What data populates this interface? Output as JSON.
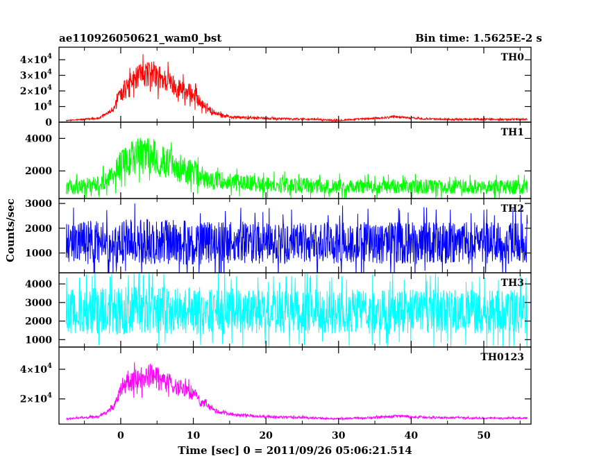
{
  "header": {
    "title": "ae110926050621_wam0_bst",
    "bin_time": "Bin time: 1.5625E-2 s"
  },
  "axes": {
    "xlabel": "Time [sec] 0 = 2011/09/26 05:06:21.514",
    "ylabel": "Counts/sec",
    "xlim": [
      -8.5,
      56.5
    ],
    "x_ticks": [
      0,
      10,
      20,
      30,
      40,
      50
    ]
  },
  "chart_data": {
    "type": "line",
    "bin_time_s": 0.015625,
    "x_range": [
      -7.5,
      56
    ],
    "panels": [
      {
        "name": "TH0",
        "color": "#ff0000",
        "ylim": [
          0,
          48000
        ],
        "yticks": [
          0,
          10000,
          20000,
          30000,
          40000
        ],
        "yticklabels": [
          "0",
          "10^4",
          "2×10^4",
          "3×10^4",
          "4×10^4"
        ],
        "envelope": {
          "x": [
            -7.5,
            -3,
            -1,
            0,
            2,
            4,
            6,
            8,
            10,
            11,
            13,
            15,
            20,
            25,
            30,
            35,
            38,
            42,
            50,
            56
          ],
          "mid": [
            1000,
            2500,
            8000,
            20000,
            28000,
            32000,
            27000,
            22000,
            18000,
            12000,
            6000,
            3500,
            2500,
            2000,
            1200,
            2500,
            3500,
            2000,
            1800,
            1800
          ],
          "amp": [
            300,
            600,
            1500,
            4000,
            7000,
            9000,
            7500,
            6500,
            5500,
            3500,
            1500,
            800,
            700,
            600,
            500,
            600,
            700,
            500,
            500,
            500
          ]
        }
      },
      {
        "name": "TH1",
        "color": "#00ff00",
        "ylim": [
          300,
          5000
        ],
        "yticks": [
          2000,
          4000
        ],
        "yticklabels": [
          "2000",
          "4000"
        ],
        "envelope": {
          "x": [
            -7.5,
            -3,
            -1,
            0,
            2,
            4,
            6,
            8,
            10,
            11,
            13,
            15,
            20,
            30,
            40,
            56
          ],
          "mid": [
            950,
            1200,
            1700,
            2400,
            2900,
            3000,
            2500,
            2200,
            1900,
            1700,
            1400,
            1300,
            1150,
            1050,
            1050,
            1000
          ],
          "amp": [
            450,
            500,
            650,
            900,
            1100,
            1200,
            1000,
            900,
            800,
            700,
            600,
            550,
            500,
            450,
            450,
            450
          ]
        }
      },
      {
        "name": "TH2",
        "color": "#0000ff",
        "ylim": [
          200,
          3200
        ],
        "yticks": [
          1000,
          2000,
          3000
        ],
        "yticklabels": [
          "1000",
          "2000",
          "3000"
        ],
        "envelope": {
          "x": [
            -7.5,
            0,
            5,
            10,
            20,
            30,
            40,
            56
          ],
          "mid": [
            1400,
            1450,
            1450,
            1400,
            1400,
            1400,
            1400,
            1400
          ],
          "amp": [
            850,
            900,
            950,
            900,
            850,
            850,
            850,
            850
          ]
        }
      },
      {
        "name": "TH3",
        "color": "#00ffff",
        "ylim": [
          600,
          4600
        ],
        "yticks": [
          1000,
          2000,
          3000,
          4000
        ],
        "yticklabels": [
          "1000",
          "2000",
          "3000",
          "4000"
        ],
        "envelope": {
          "x": [
            -7.5,
            0,
            5,
            10,
            20,
            30,
            40,
            56
          ],
          "mid": [
            2500,
            2550,
            2600,
            2550,
            2500,
            2500,
            2500,
            2500
          ],
          "amp": [
            1200,
            1300,
            1300,
            1300,
            1200,
            1200,
            1200,
            1200
          ]
        }
      },
      {
        "name": "TH0123",
        "color": "#ff00ff",
        "ylim": [
          3000,
          55000
        ],
        "yticks": [
          20000,
          40000
        ],
        "yticklabels": [
          "2×10^4",
          "4×10^4"
        ],
        "envelope": {
          "x": [
            -7.5,
            -3,
            -1,
            0,
            2,
            4,
            6,
            8,
            10,
            11,
            13,
            15,
            20,
            25,
            30,
            35,
            38,
            42,
            50,
            56
          ],
          "mid": [
            6500,
            8000,
            14000,
            26000,
            33000,
            36000,
            32000,
            28000,
            24000,
            18000,
            12000,
            9500,
            8000,
            7500,
            6500,
            7500,
            8500,
            7500,
            7000,
            7000
          ],
          "amp": [
            500,
            800,
            1800,
            4500,
            7000,
            8500,
            7000,
            6000,
            5000,
            3500,
            1500,
            900,
            800,
            700,
            600,
            700,
            800,
            700,
            600,
            600
          ]
        }
      }
    ]
  }
}
